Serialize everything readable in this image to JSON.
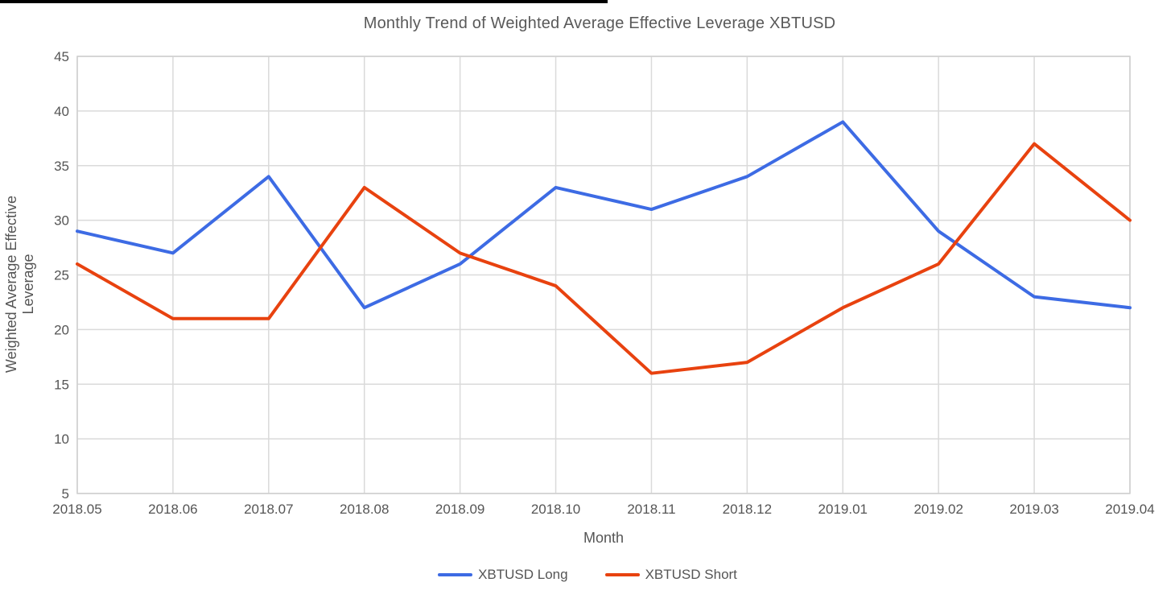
{
  "page": {
    "top_bar_color": "#000000",
    "background_color": "#ffffff"
  },
  "chart_data": {
    "type": "line",
    "title": "Monthly Trend of Weighted Average Effective Leverage XBTUSD",
    "xlabel": "Month",
    "ylabel": "Weighted Average Effective Leverage",
    "categories": [
      "2018.05",
      "2018.06",
      "2018.07",
      "2018.08",
      "2018.09",
      "2018.10",
      "2018.11",
      "2018.12",
      "2019.01",
      "2019.02",
      "2019.03",
      "2019.04"
    ],
    "series": [
      {
        "name": "XBTUSD Long",
        "color": "#3D6BE4",
        "values": [
          29,
          27,
          34,
          22,
          26,
          33,
          31,
          34,
          39,
          29,
          23,
          22
        ]
      },
      {
        "name": "XBTUSD Short",
        "color": "#E8420F",
        "values": [
          26,
          21,
          21,
          33,
          27,
          24,
          16,
          17,
          22,
          26,
          37,
          30
        ]
      }
    ],
    "ylim": [
      5,
      45
    ],
    "ytick_step": 5,
    "yticks": [
      5,
      10,
      15,
      20,
      25,
      30,
      35,
      40,
      45
    ],
    "grid": true,
    "legend_position": "bottom",
    "text_color": "#555555",
    "grid_color": "#DADADA",
    "axis_frame_color": "#CFCFCF",
    "line_width": 4
  }
}
